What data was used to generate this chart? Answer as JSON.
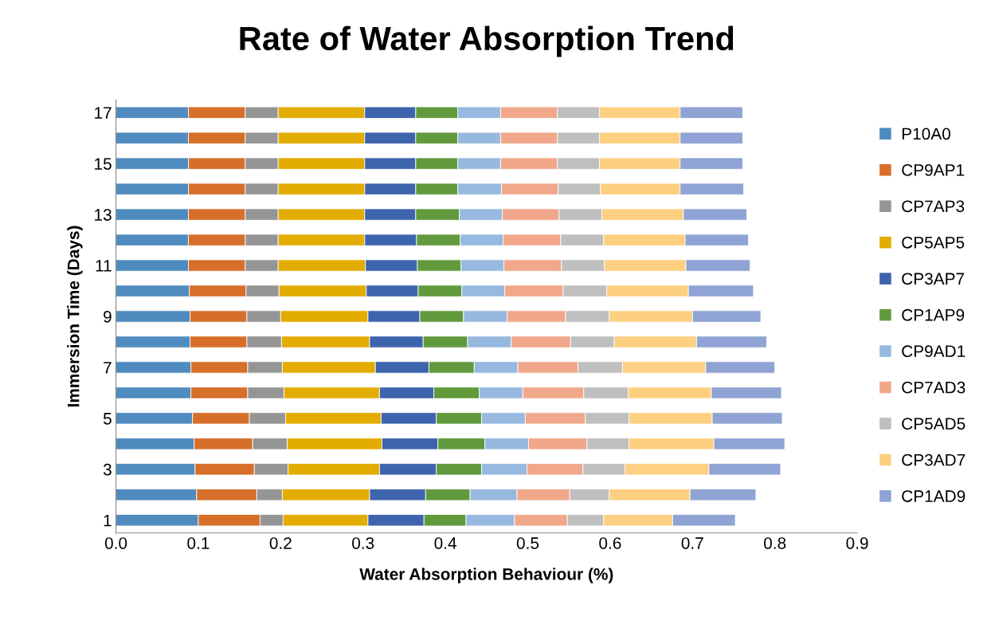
{
  "chart_data": {
    "type": "bar",
    "orientation": "horizontal",
    "stacked": true,
    "title": "Rate of Water Absorption Trend",
    "xlabel": "Water Absorption Behaviour (%)",
    "ylabel": "Immersion Time (Days)",
    "categories": [
      "17",
      null,
      "15",
      null,
      "13",
      null,
      "11",
      null,
      "9",
      null,
      "7",
      null,
      "5",
      null,
      "3",
      null,
      "1"
    ],
    "xlim": [
      0,
      0.9
    ],
    "xticks": [
      {
        "value": 0,
        "label": "0.0"
      },
      0.1,
      0.2,
      0.3,
      0.4,
      0.5,
      0.6,
      0.7,
      0.8,
      0.9
    ],
    "grid": false,
    "legend": "right",
    "series": [
      {
        "name": "P10A0",
        "color": "#4f8bbf",
        "values": [
          0.088,
          0.088,
          0.088,
          0.088,
          0.088,
          0.088,
          0.088,
          0.089,
          0.09,
          0.09,
          0.091,
          0.091,
          0.093,
          0.095,
          0.096,
          0.098,
          0.1
        ]
      },
      {
        "name": "CP9AP1",
        "color": "#d66f2a",
        "values": [
          0.069,
          0.069,
          0.069,
          0.069,
          0.069,
          0.069,
          0.069,
          0.069,
          0.069,
          0.069,
          0.069,
          0.069,
          0.069,
          0.071,
          0.072,
          0.073,
          0.075
        ]
      },
      {
        "name": "CP7AP3",
        "color": "#959595",
        "values": [
          0.04,
          0.04,
          0.04,
          0.04,
          0.04,
          0.04,
          0.04,
          0.04,
          0.041,
          0.042,
          0.042,
          0.044,
          0.044,
          0.042,
          0.041,
          0.031,
          0.028
        ]
      },
      {
        "name": "CP5AP5",
        "color": "#e3ac00",
        "values": [
          0.105,
          0.105,
          0.105,
          0.105,
          0.105,
          0.105,
          0.106,
          0.106,
          0.106,
          0.107,
          0.113,
          0.116,
          0.116,
          0.115,
          0.111,
          0.106,
          0.103
        ]
      },
      {
        "name": "CP3AP7",
        "color": "#3d64ad",
        "values": [
          0.062,
          0.062,
          0.062,
          0.062,
          0.062,
          0.063,
          0.063,
          0.063,
          0.063,
          0.065,
          0.065,
          0.066,
          0.067,
          0.068,
          0.069,
          0.068,
          0.068
        ]
      },
      {
        "name": "CP1AP9",
        "color": "#619a3d",
        "values": [
          0.051,
          0.051,
          0.051,
          0.051,
          0.053,
          0.053,
          0.053,
          0.053,
          0.053,
          0.054,
          0.055,
          0.055,
          0.055,
          0.057,
          0.055,
          0.054,
          0.051
        ]
      },
      {
        "name": "CP9AD1",
        "color": "#97b9e0",
        "values": [
          0.052,
          0.052,
          0.052,
          0.053,
          0.052,
          0.052,
          0.052,
          0.052,
          0.053,
          0.053,
          0.053,
          0.053,
          0.053,
          0.053,
          0.055,
          0.057,
          0.059
        ]
      },
      {
        "name": "CP7AD3",
        "color": "#f1a88a",
        "values": [
          0.069,
          0.069,
          0.069,
          0.069,
          0.069,
          0.07,
          0.07,
          0.071,
          0.071,
          0.072,
          0.073,
          0.074,
          0.073,
          0.071,
          0.068,
          0.064,
          0.064
        ]
      },
      {
        "name": "CP5AD5",
        "color": "#bfbfbf",
        "values": [
          0.051,
          0.051,
          0.051,
          0.051,
          0.052,
          0.052,
          0.052,
          0.053,
          0.053,
          0.053,
          0.054,
          0.054,
          0.053,
          0.051,
          0.051,
          0.048,
          0.044
        ]
      },
      {
        "name": "CP3AD7",
        "color": "#fdd081",
        "values": [
          0.098,
          0.098,
          0.098,
          0.097,
          0.099,
          0.099,
          0.099,
          0.099,
          0.101,
          0.1,
          0.101,
          0.101,
          0.101,
          0.103,
          0.102,
          0.098,
          0.084
        ]
      },
      {
        "name": "CP1AD9",
        "color": "#8fa3d4",
        "values": [
          0.076,
          0.076,
          0.076,
          0.077,
          0.077,
          0.077,
          0.078,
          0.079,
          0.083,
          0.085,
          0.084,
          0.085,
          0.085,
          0.086,
          0.087,
          0.08,
          0.076
        ]
      }
    ]
  }
}
